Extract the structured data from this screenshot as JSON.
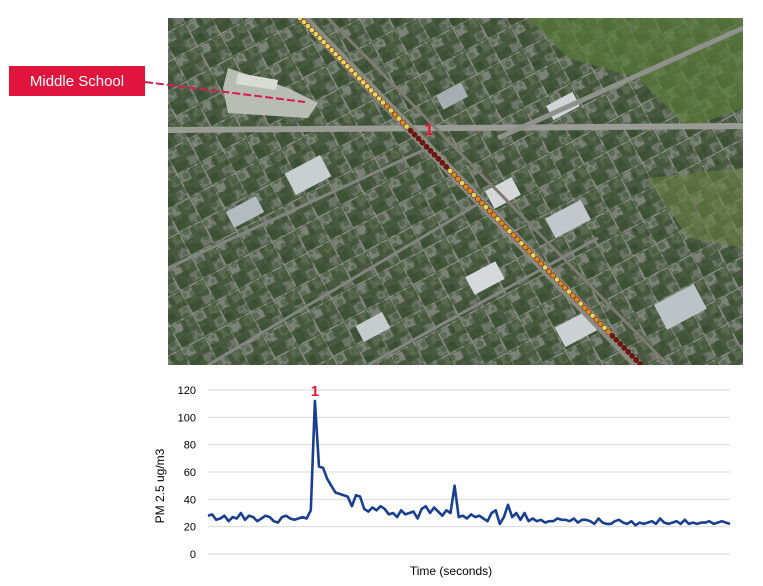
{
  "map": {
    "callout_label": "Middle School",
    "spike_marker": "1",
    "colors": {
      "callout_fill": "#e0143c",
      "callout_line": "#d81b52",
      "marker": "#e8132b",
      "track_low": "#f7d25a",
      "track_mid": "#e8831e",
      "track_high": "#7a0f0f"
    }
  },
  "chart_data": {
    "type": "line",
    "ylabel": "PM 2.5 ug/m3",
    "xlabel": "Time (seconds)",
    "ylim": [
      0,
      120
    ],
    "yticks": [
      0,
      20,
      40,
      60,
      80,
      100,
      120
    ],
    "grid": true,
    "line_color": "#1a3f91",
    "annotation": {
      "text": "1",
      "index": 26,
      "color": "#e8132b"
    },
    "values": [
      28,
      29,
      25,
      26,
      28,
      24,
      27,
      26,
      30,
      25,
      28,
      27,
      24,
      26,
      28,
      27,
      24,
      23,
      27,
      28,
      26,
      25,
      26,
      27,
      26,
      32,
      112,
      64,
      63,
      55,
      50,
      45,
      44,
      43,
      42,
      35,
      43,
      42,
      33,
      31,
      34,
      32,
      35,
      33,
      29,
      30,
      27,
      32,
      29,
      30,
      31,
      26,
      33,
      35,
      30,
      34,
      31,
      28,
      32,
      30,
      50,
      27,
      28,
      26,
      29,
      27,
      28,
      26,
      24,
      30,
      32,
      22,
      27,
      36,
      27,
      30,
      25,
      30,
      24,
      26,
      24,
      25,
      23,
      24,
      24,
      26,
      25,
      25,
      24,
      26,
      23,
      25,
      25,
      24,
      22,
      26,
      23,
      22,
      22,
      24,
      25,
      23,
      22,
      24,
      21,
      23,
      22,
      23,
      24,
      22,
      26,
      23,
      22,
      23,
      24,
      22,
      25,
      22,
      23,
      22,
      23,
      23,
      24,
      22,
      23,
      24,
      23,
      22
    ]
  }
}
